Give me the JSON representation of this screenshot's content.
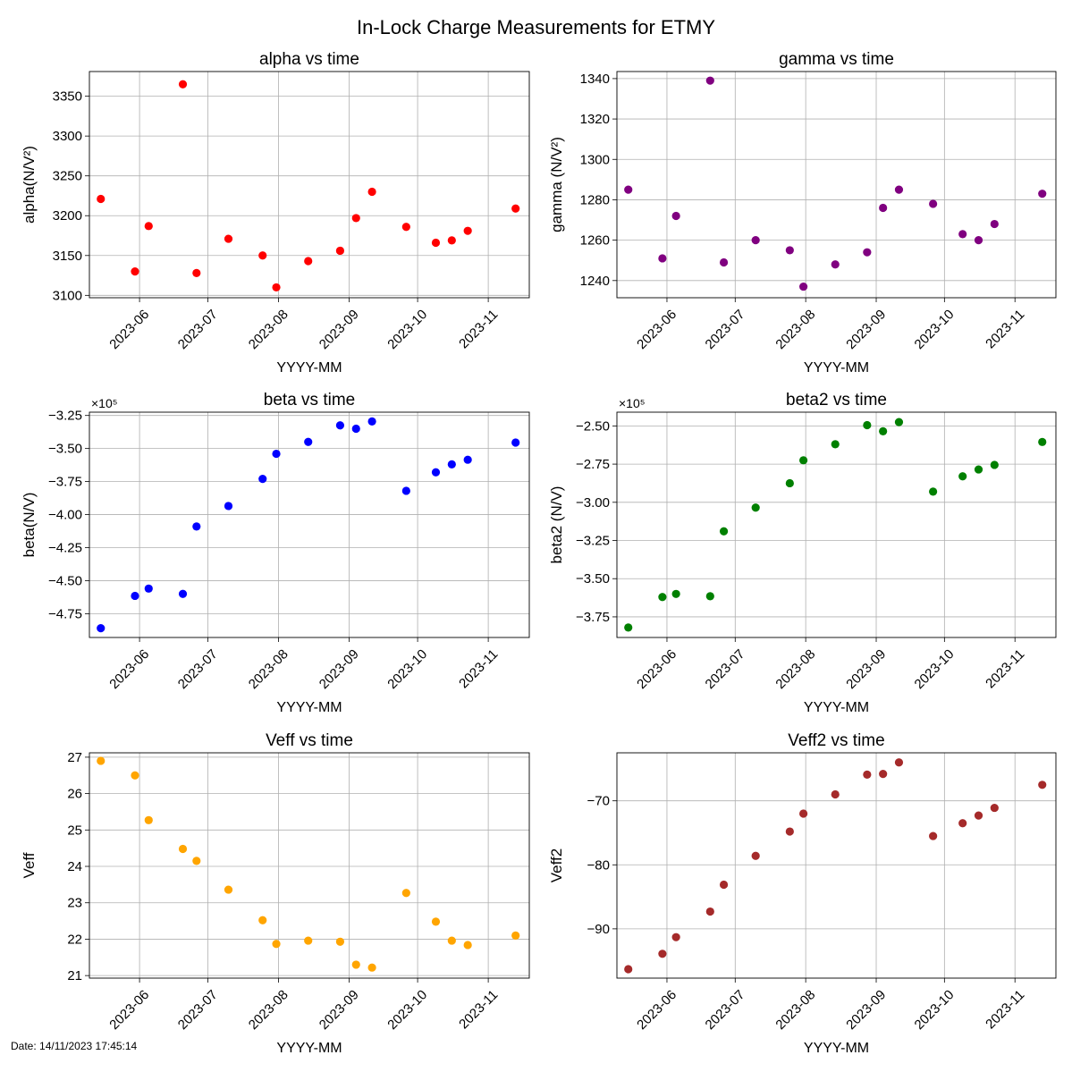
{
  "figure": {
    "title": "In-Lock Charge Measurements for ETMY",
    "date_stamp": "Date: 14/11/2023 17:45:14"
  },
  "chart_data": [
    {
      "id": "alpha",
      "type": "scatter",
      "title": "alpha vs time",
      "xlabel": "YYYY-MM",
      "ylabel": "alpha(N/V²)",
      "color": "#ff0000",
      "x": [
        "2023-05-15",
        "2023-05-30",
        "2023-06-05",
        "2023-06-20",
        "2023-06-26",
        "2023-07-10",
        "2023-07-25",
        "2023-07-31",
        "2023-08-14",
        "2023-08-28",
        "2023-09-04",
        "2023-09-11",
        "2023-09-26",
        "2023-10-09",
        "2023-10-16",
        "2023-10-23",
        "2023-11-13"
      ],
      "y": [
        3221,
        3130,
        3187,
        3365,
        3128,
        3171,
        3150,
        3110,
        3143,
        3156,
        3197,
        3230,
        3186,
        3166,
        3169,
        3181,
        3209
      ],
      "xlim": [
        "2023-05-10",
        "2023-11-19"
      ],
      "xticks": [
        "2023-06",
        "2023-07",
        "2023-08",
        "2023-09",
        "2023-10",
        "2023-11"
      ],
      "ylim": [
        3097,
        3381
      ],
      "yticks": [
        3100,
        3150,
        3200,
        3250,
        3300,
        3350
      ],
      "ytick_labels": [
        "3100",
        "3150",
        "3200",
        "3250",
        "3300",
        "3350"
      ],
      "grid": true
    },
    {
      "id": "gamma",
      "type": "scatter",
      "title": "gamma vs time",
      "xlabel": "YYYY-MM",
      "ylabel": "gamma (N/V²)",
      "color": "#800080",
      "x": [
        "2023-05-15",
        "2023-05-30",
        "2023-06-05",
        "2023-06-20",
        "2023-06-26",
        "2023-07-10",
        "2023-07-25",
        "2023-07-31",
        "2023-08-14",
        "2023-08-28",
        "2023-09-04",
        "2023-09-11",
        "2023-09-26",
        "2023-10-09",
        "2023-10-16",
        "2023-10-23",
        "2023-11-13"
      ],
      "y": [
        1285,
        1251,
        1272,
        1339,
        1249,
        1260,
        1255,
        1237,
        1248,
        1254,
        1276,
        1285,
        1278,
        1263,
        1260,
        1268,
        1283
      ],
      "xlim": [
        "2023-05-10",
        "2023-11-19"
      ],
      "xticks": [
        "2023-06",
        "2023-07",
        "2023-08",
        "2023-09",
        "2023-10",
        "2023-11"
      ],
      "ylim": [
        1231.5,
        1343.5
      ],
      "yticks": [
        1240,
        1260,
        1280,
        1300,
        1320,
        1340
      ],
      "ytick_labels": [
        "1240",
        "1260",
        "1280",
        "1300",
        "1320",
        "1340"
      ],
      "grid": true
    },
    {
      "id": "beta",
      "type": "scatter",
      "title": "beta vs time",
      "xlabel": "YYYY-MM",
      "ylabel": "beta(N/V)",
      "offset_label": "×10⁵",
      "color": "#0000ff",
      "x": [
        "2023-05-15",
        "2023-05-30",
        "2023-06-05",
        "2023-06-20",
        "2023-06-26",
        "2023-07-10",
        "2023-07-25",
        "2023-07-31",
        "2023-08-14",
        "2023-08-28",
        "2023-09-04",
        "2023-09-11",
        "2023-09-26",
        "2023-10-09",
        "2023-10-16",
        "2023-10-23",
        "2023-11-13"
      ],
      "y": [
        -486000,
        -461500,
        -456000,
        -460000,
        -409000,
        -393500,
        -373000,
        -354000,
        -345000,
        -332500,
        -335000,
        -329500,
        -382000,
        -368000,
        -362000,
        -358500,
        -345500
      ],
      "xlim": [
        "2023-05-10",
        "2023-11-19"
      ],
      "xticks": [
        "2023-06",
        "2023-07",
        "2023-08",
        "2023-09",
        "2023-10",
        "2023-11"
      ],
      "ylim": [
        -493000,
        -322500
      ],
      "yticks": [
        -475000,
        -450000,
        -425000,
        -400000,
        -375000,
        -350000,
        -325000
      ],
      "ytick_labels": [
        "−4.75",
        "−4.50",
        "−4.25",
        "−4.00",
        "−3.75",
        "−3.50",
        "−3.25"
      ],
      "grid": true
    },
    {
      "id": "beta2",
      "type": "scatter",
      "title": "beta2 vs time",
      "xlabel": "YYYY-MM",
      "ylabel": "beta2 (N/V)",
      "offset_label": "×10⁵",
      "color": "#008000",
      "x": [
        "2023-05-15",
        "2023-05-30",
        "2023-06-05",
        "2023-06-20",
        "2023-06-26",
        "2023-07-10",
        "2023-07-25",
        "2023-07-31",
        "2023-08-14",
        "2023-08-28",
        "2023-09-04",
        "2023-09-11",
        "2023-09-26",
        "2023-10-09",
        "2023-10-16",
        "2023-10-23",
        "2023-11-13"
      ],
      "y": [
        -382000,
        -362000,
        -360000,
        -361500,
        -319000,
        -303500,
        -287500,
        -272500,
        -262000,
        -249500,
        -253500,
        -247500,
        -293000,
        -283000,
        -278500,
        -275500,
        -260500
      ],
      "xlim": [
        "2023-05-10",
        "2023-11-19"
      ],
      "xticks": [
        "2023-06",
        "2023-07",
        "2023-08",
        "2023-09",
        "2023-10",
        "2023-11"
      ],
      "ylim": [
        -388500,
        -241000
      ],
      "yticks": [
        -375000,
        -350000,
        -325000,
        -300000,
        -275000,
        -250000
      ],
      "ytick_labels": [
        "−3.75",
        "−3.50",
        "−3.25",
        "−3.00",
        "−2.75",
        "−2.50"
      ],
      "grid": true
    },
    {
      "id": "veff",
      "type": "scatter",
      "title": "Veff vs time",
      "xlabel": "YYYY-MM",
      "ylabel": "Veff",
      "color": "#ffa500",
      "x": [
        "2023-05-15",
        "2023-05-30",
        "2023-06-05",
        "2023-06-20",
        "2023-06-26",
        "2023-07-10",
        "2023-07-25",
        "2023-07-31",
        "2023-08-14",
        "2023-08-28",
        "2023-09-04",
        "2023-09-11",
        "2023-09-26",
        "2023-10-09",
        "2023-10-16",
        "2023-10-23",
        "2023-11-13"
      ],
      "y": [
        26.9,
        26.5,
        25.27,
        24.48,
        24.15,
        23.36,
        22.52,
        21.87,
        21.96,
        21.93,
        21.3,
        21.22,
        23.27,
        22.48,
        21.96,
        21.84,
        22.1
      ],
      "xlim": [
        "2023-05-10",
        "2023-11-19"
      ],
      "xticks": [
        "2023-06",
        "2023-07",
        "2023-08",
        "2023-09",
        "2023-10",
        "2023-11"
      ],
      "ylim": [
        20.93,
        27.12
      ],
      "yticks": [
        21,
        22,
        23,
        24,
        25,
        26,
        27
      ],
      "ytick_labels": [
        "21",
        "22",
        "23",
        "24",
        "25",
        "26",
        "27"
      ],
      "grid": true
    },
    {
      "id": "veff2",
      "type": "scatter",
      "title": "Veff2 vs time",
      "xlabel": "YYYY-MM",
      "ylabel": "Veff2",
      "color": "#a52a2a",
      "x": [
        "2023-05-15",
        "2023-05-30",
        "2023-06-05",
        "2023-06-20",
        "2023-06-26",
        "2023-07-10",
        "2023-07-25",
        "2023-07-31",
        "2023-08-14",
        "2023-08-28",
        "2023-09-04",
        "2023-09-11",
        "2023-09-26",
        "2023-10-09",
        "2023-10-16",
        "2023-10-23",
        "2023-11-13"
      ],
      "y": [
        -96.3,
        -93.9,
        -91.3,
        -87.3,
        -83.1,
        -78.6,
        -74.8,
        -72,
        -69,
        -65.9,
        -65.8,
        -64,
        -75.5,
        -73.5,
        -72.3,
        -71.1,
        -67.5
      ],
      "xlim": [
        "2023-05-10",
        "2023-11-19"
      ],
      "xticks": [
        "2023-06",
        "2023-07",
        "2023-08",
        "2023-09",
        "2023-10",
        "2023-11"
      ],
      "ylim": [
        -97.7,
        -62.5
      ],
      "yticks": [
        -90,
        -80,
        -70
      ],
      "ytick_labels": [
        "−90",
        "−80",
        "−70"
      ],
      "grid": true
    }
  ]
}
